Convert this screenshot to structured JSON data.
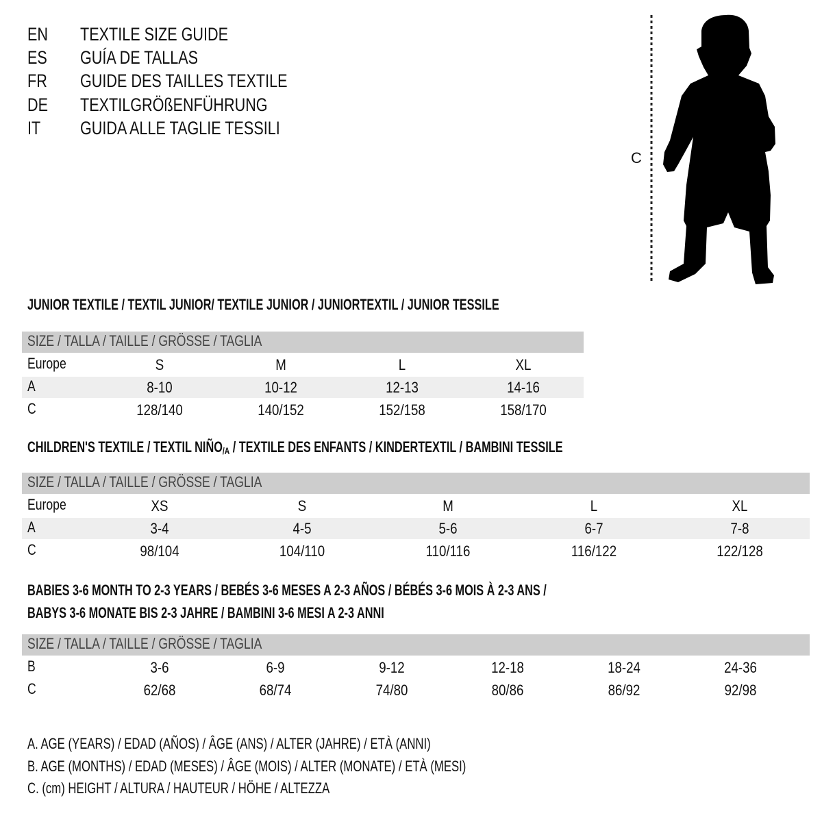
{
  "languages": [
    {
      "code": "EN",
      "title": "TEXTILE SIZE GUIDE"
    },
    {
      "code": "ES",
      "title": "GUÍA DE TALLAS"
    },
    {
      "code": "FR",
      "title": "GUIDE DES TAILLES TEXTILE"
    },
    {
      "code": "DE",
      "title": "TEXTILGRÖßENFÜHRUNG"
    },
    {
      "code": "IT",
      "title": "GUIDA ALLE TAGLIE TESSILI"
    }
  ],
  "figure": {
    "height_label": "C",
    "icon": "child-silhouette"
  },
  "colors": {
    "header_row": "#cdcdcd",
    "alt_row": "#eeeeee"
  },
  "junior": {
    "title": "JUNIOR TEXTILE / TEXTIL JUNIOR/ TEXTILE JUNIOR / JUNIORTEXTIL / JUNIOR TESSILE",
    "header": "SIZE / TALLA / TAILLE / GRÖSSE / TAGLIA",
    "rows": [
      {
        "label": "Europe",
        "values": [
          "S",
          "M",
          "L",
          "XL"
        ]
      },
      {
        "label": "A",
        "values": [
          "8-10",
          "10-12",
          "12-13",
          "14-16"
        ]
      },
      {
        "label": "C",
        "values": [
          "128/140",
          "140/152",
          "152/158",
          "158/170"
        ]
      }
    ]
  },
  "children": {
    "title_before": "CHILDREN'S TEXTILE / TEXTIL NIÑO",
    "title_sub": "/A",
    "title_after": " / TEXTILE DES ENFANTS / KINDERTEXTIL / BAMBINI TESSILE",
    "header": "SIZE / TALLA / TAILLE / GRÖSSE / TAGLIA",
    "rows": [
      {
        "label": "Europe",
        "values": [
          "XS",
          "S",
          "M",
          "L",
          "XL"
        ]
      },
      {
        "label": "A",
        "values": [
          "3-4",
          "4-5",
          "5-6",
          "6-7",
          "7-8"
        ]
      },
      {
        "label": "C",
        "values": [
          "98/104",
          "104/110",
          "110/116",
          "116/122",
          "122/128"
        ]
      }
    ]
  },
  "babies": {
    "title_line1": "BABIES 3-6 MONTH TO 2-3 YEARS / BEBÉS 3-6 MESES A 2-3 AÑOS / BÉBÉS 3-6 MOIS À 2-3 ANS /",
    "title_line2": "BABYS 3-6 MONATE BIS 2-3 JAHRE / BAMBINI 3-6 MESI A 2-3 ANNI",
    "header": "SIZE / TALLA / TAILLE / GRÖSSE / TAGLIA",
    "rows": [
      {
        "label": "B",
        "values": [
          "3-6",
          "6-9",
          "9-12",
          "12-18",
          "18-24",
          "24-36"
        ]
      },
      {
        "label": "C",
        "values": [
          "62/68",
          "68/74",
          "74/80",
          "80/86",
          "86/92",
          "92/98"
        ]
      }
    ]
  },
  "legend": [
    "A. AGE (YEARS) / EDAD (AÑOS) / ÂGE (ANS) / ALTER (JAHRE) / ETÀ (ANNI)",
    "B. AGE (MONTHS) / EDAD (MESES) / ÂGE (MOIS) / ALTER (MONATE) / ETÀ (MESI)",
    "C. (cm) HEIGHT / ALTURA / HAUTEUR / HÖHE / ALTEZZA"
  ]
}
